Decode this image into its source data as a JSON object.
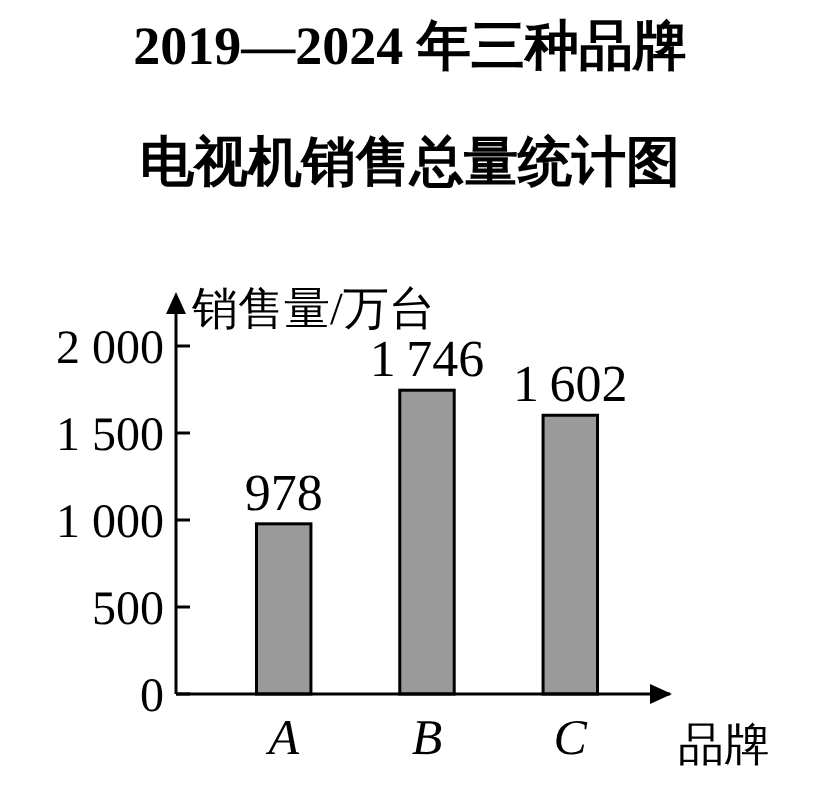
{
  "chart_data": {
    "type": "bar",
    "title": "2019—2024 年三种品牌电视机销售总量统计图",
    "ylabel": "销售量/万台",
    "xlabel": "品牌",
    "categories": [
      "A",
      "B",
      "C"
    ],
    "values": [
      978,
      1746,
      1602
    ],
    "color": "#9a9a9a",
    "ylim": [
      0,
      2000
    ],
    "yticks": [
      0,
      500,
      {
        "value": 1000,
        "label": "1 000"
      },
      {
        "value": 1500,
        "label": "1 500"
      },
      {
        "value": 2000,
        "label": "2 000"
      }
    ],
    "data_labels": true,
    "grid": false
  }
}
